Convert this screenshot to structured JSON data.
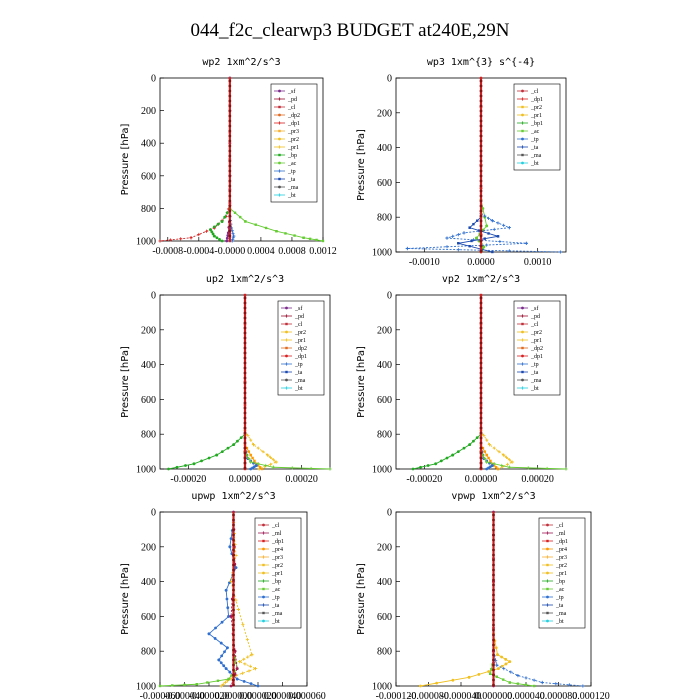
{
  "title": "044_f2c_clearwp3  BUDGET at240E,29N",
  "colors": {
    "sf": "#7a2a8a",
    "pd": "#9b1030",
    "cl": "#c0303a",
    "ml": "#a01d55",
    "dp1": "#d92020",
    "dp2": "#e06a20",
    "pr1": "#f0c020",
    "pr2": "#f0c020",
    "pr3": "#f7b030",
    "pr4": "#ff9900",
    "bp": "#22aa22",
    "bp1": "#22aa22",
    "ac": "#66cc33",
    "tp": "#2f6fd0",
    "ta": "#1a4ab0",
    "ma": "#555555",
    "bt": "#22d0e0"
  },
  "chart_data": [
    {
      "type": "line",
      "panel": "wp2",
      "title": "wp2   1xm^2/s^3",
      "ylabel": "Pressure [hPa]",
      "ylim": [
        0,
        1000
      ],
      "xlim": [
        -0.0009,
        0.0012
      ],
      "xticks": [
        -0.0008,
        -0.0004,
        0.0,
        0.0004,
        0.0008,
        0.0012
      ],
      "xtick_labels": [
        "-0.0008",
        "-0.0004",
        "-0.0000",
        "0.0004",
        "0.0008",
        "0.0012"
      ],
      "yticks": [
        0,
        200,
        400,
        600,
        800,
        1000
      ],
      "legend": [
        "_sf",
        "_pd",
        "_cl",
        "_dp2",
        "_dp1",
        "_pr3",
        "_pr2",
        "_pr1",
        "_bp",
        "_ac",
        "_tp",
        "_ta",
        "_ma",
        "_bt"
      ],
      "series": [
        {
          "name": "_sf",
          "color_key": "sf",
          "x": [
            0,
            0,
            0,
            -2e-05,
            -4e-05
          ],
          "y": [
            0,
            600,
            850,
            950,
            1000
          ]
        },
        {
          "name": "_dp1",
          "color_key": "dp1",
          "x": [
            0,
            -5e-05,
            -0.0002,
            -0.0005,
            -0.0009
          ],
          "y": [
            780,
            850,
            920,
            980,
            1000
          ]
        },
        {
          "name": "_ac",
          "color_key": "ac",
          "x": [
            0,
            0.0002,
            0.0006,
            0.00095,
            0.0012
          ],
          "y": [
            800,
            880,
            940,
            980,
            1000
          ]
        },
        {
          "name": "_bp",
          "color_key": "bp",
          "x": [
            0,
            -0.0001,
            -0.00025,
            -0.0002,
            -0.0001
          ],
          "y": [
            800,
            880,
            930,
            970,
            1000
          ]
        },
        {
          "name": "_tp",
          "color_key": "tp",
          "x": [
            0,
            2e-05,
            5e-05,
            3e-05
          ],
          "y": [
            850,
            920,
            970,
            1000
          ]
        },
        {
          "name": "_cl",
          "color_key": "cl",
          "x": [
            0,
            0,
            0,
            0
          ],
          "y": [
            0,
            500,
            900,
            1000
          ]
        }
      ]
    },
    {
      "type": "line",
      "panel": "wp3",
      "title": "wp3   1xm^{3} s^{-4}",
      "ylabel": "Pressure [hPa]",
      "ylim": [
        0,
        1000
      ],
      "xlim": [
        -0.0015,
        0.0015
      ],
      "xticks": [
        -0.001,
        0.0,
        0.001
      ],
      "xtick_labels": [
        "-0.0010",
        "0.0000",
        "0.0010"
      ],
      "yticks": [
        0,
        200,
        400,
        600,
        800,
        1000
      ],
      "legend": [
        "_cl",
        "_dp1",
        "_pr2",
        "_pr1",
        "_bp1",
        "_ac",
        "_tp",
        "_ta",
        "_ma",
        "_bt"
      ],
      "series": [
        {
          "name": "_ac",
          "color_key": "ac",
          "x": [
            0,
            0.0001,
            -8e-05,
            5e-05,
            0
          ],
          "y": [
            700,
            850,
            920,
            970,
            1000
          ]
        },
        {
          "name": "_tp",
          "color_key": "tp",
          "x": [
            0,
            0.0002,
            0.0005,
            -0.0003,
            -0.0006,
            0.0008,
            -0.0013,
            0.0014
          ],
          "y": [
            780,
            820,
            860,
            890,
            920,
            950,
            980,
            1000
          ]
        },
        {
          "name": "_ta",
          "color_key": "ta",
          "x": [
            0,
            -0.0002,
            0.0003,
            -0.0004,
            0.0002
          ],
          "y": [
            800,
            860,
            910,
            950,
            1000
          ]
        },
        {
          "name": "_dp1",
          "color_key": "dp1",
          "x": [
            0,
            0,
            0,
            0
          ],
          "y": [
            0,
            500,
            900,
            1000
          ]
        }
      ]
    },
    {
      "type": "line",
      "panel": "up2",
      "title": "up2   1xm^2/s^3",
      "ylabel": "Pressure [hPa]",
      "ylim": [
        0,
        1000
      ],
      "xlim": [
        -0.0003,
        0.0003
      ],
      "xticks": [
        -0.0002,
        0.0,
        0.0002
      ],
      "xtick_labels": [
        "-0.00020",
        "0.00000",
        "0.00020"
      ],
      "yticks": [
        0,
        200,
        400,
        600,
        800,
        1000
      ],
      "legend": [
        "_sf",
        "_pd",
        "_cl",
        "_pr2",
        "_pr1",
        "_dp2",
        "_dp1",
        "_tp",
        "_ta",
        "_ma",
        "_bt"
      ],
      "series": [
        {
          "name": "_dp2",
          "color_key": "bp",
          "x": [
            0,
            -4e-05,
            -0.0001,
            -0.00018,
            -0.00027
          ],
          "y": [
            800,
            860,
            920,
            970,
            1000
          ]
        },
        {
          "name": "_pr1",
          "color_key": "pr1",
          "x": [
            0,
            3e-05,
            8e-05,
            0.00011,
            5e-05
          ],
          "y": [
            780,
            860,
            920,
            960,
            1000
          ]
        },
        {
          "name": "_pr2",
          "color_key": "pr4",
          "x": [
            0,
            2e-05,
            4e-05,
            6e-05
          ],
          "y": [
            860,
            920,
            970,
            1000
          ]
        },
        {
          "name": "_tp",
          "color_key": "tp",
          "x": [
            0,
            1e-05,
            4e-05,
            2e-05
          ],
          "y": [
            880,
            940,
            980,
            1000
          ]
        },
        {
          "name": "_ac",
          "color_key": "ac",
          "x": [
            0,
            2e-05,
            0.0001,
            0.0003
          ],
          "y": [
            900,
            960,
            990,
            1000
          ]
        },
        {
          "name": "_sf",
          "color_key": "dp1",
          "x": [
            0,
            0,
            0,
            0
          ],
          "y": [
            0,
            500,
            900,
            1000
          ]
        }
      ]
    },
    {
      "type": "line",
      "panel": "vp2",
      "title": "vp2   1xm^2/s^3",
      "ylabel": "Pressure [hPa]",
      "ylim": [
        0,
        1000
      ],
      "xlim": [
        -0.0003,
        0.0003
      ],
      "xticks": [
        -0.0002,
        0.0,
        0.0002
      ],
      "xtick_labels": [
        "-0.00020",
        "0.00000",
        "0.00020"
      ],
      "yticks": [
        0,
        200,
        400,
        600,
        800,
        1000
      ],
      "legend": [
        "_sf",
        "_pd",
        "_cl",
        "_pr2",
        "_pr1",
        "_dp2",
        "_dp1",
        "_tp",
        "_ta",
        "_ma",
        "_bt"
      ],
      "series": [
        {
          "name": "_dp2",
          "color_key": "bp",
          "x": [
            0,
            -4e-05,
            -0.0001,
            -0.00016,
            -0.00024
          ],
          "y": [
            800,
            860,
            920,
            970,
            1000
          ]
        },
        {
          "name": "_pr1",
          "color_key": "pr1",
          "x": [
            0,
            3e-05,
            8e-05,
            0.00011,
            6e-05
          ],
          "y": [
            780,
            860,
            920,
            960,
            1000
          ]
        },
        {
          "name": "_pr2",
          "color_key": "pr4",
          "x": [
            0,
            2e-05,
            4e-05,
            6e-05
          ],
          "y": [
            860,
            920,
            970,
            1000
          ]
        },
        {
          "name": "_tp",
          "color_key": "tp",
          "x": [
            0,
            1e-05,
            4e-05,
            2e-05
          ],
          "y": [
            880,
            940,
            980,
            1000
          ]
        },
        {
          "name": "_ac",
          "color_key": "ac",
          "x": [
            0,
            2e-05,
            0.0001,
            0.0003
          ],
          "y": [
            900,
            960,
            990,
            1000
          ]
        },
        {
          "name": "_sf",
          "color_key": "dp1",
          "x": [
            0,
            0,
            0,
            0
          ],
          "y": [
            0,
            500,
            900,
            1000
          ]
        }
      ]
    },
    {
      "type": "line",
      "panel": "upwp",
      "title": "upwp   1xm^2/s^3",
      "ylabel": "Pressure [hPa]",
      "ylim": [
        0,
        1000
      ],
      "xlim": [
        -6e-05,
        6e-05
      ],
      "xticks": [
        -6e-05,
        -4e-05,
        -2e-05,
        0.0,
        2e-05,
        4e-05,
        6e-05
      ],
      "xtick_labels": [
        "-0.000060",
        "-0.000040",
        "-0.000020",
        "0.000000",
        "0.000020",
        "0.000040",
        "0.000060"
      ],
      "yticks": [
        0,
        200,
        400,
        600,
        800,
        1000
      ],
      "legend": [
        "_cl",
        "_ml",
        "_dp1",
        "_pr4",
        "_pr3",
        "_pr2",
        "_pr1",
        "_bp",
        "_ac",
        "_tp",
        "_ta",
        "_ma",
        "_bt"
      ],
      "series": [
        {
          "name": "_tp",
          "color_key": "tp",
          "x": [
            0,
            -3e-06,
            2e-06,
            -6e-06,
            -4e-06,
            -2e-05,
            -5e-06,
            -1.2e-05,
            -6e-06,
            3e-06,
            2e-05
          ],
          "y": [
            60,
            200,
            320,
            450,
            600,
            700,
            780,
            850,
            900,
            960,
            1000
          ]
        },
        {
          "name": "_pr1",
          "color_key": "pr1",
          "x": [
            0,
            2e-06,
            -2e-06,
            4e-06,
            1.5e-05,
            5e-06,
            1.8e-05,
            2e-06,
            -5e-06,
            -1e-05
          ],
          "y": [
            60,
            250,
            400,
            560,
            820,
            860,
            900,
            940,
            970,
            1000
          ]
        },
        {
          "name": "_ac",
          "color_key": "ac",
          "x": [
            0,
            3e-06,
            -4e-06,
            -3e-05,
            -6e-05
          ],
          "y": [
            800,
            900,
            960,
            990,
            1000
          ]
        },
        {
          "name": "_ml",
          "color_key": "ml",
          "x": [
            0,
            1e-06,
            -2e-06,
            3e-06,
            -2e-06
          ],
          "y": [
            0,
            300,
            600,
            900,
            1000
          ]
        }
      ]
    },
    {
      "type": "line",
      "panel": "vpwp",
      "title": "vpwp   1xm^2/s^3",
      "ylabel": "Pressure [hPa]",
      "ylim": [
        0,
        1000
      ],
      "xlim": [
        -0.00012,
        0.00012
      ],
      "xticks": [
        -0.00012,
        -8e-05,
        -4e-05,
        0.0,
        4e-05,
        8e-05,
        0.00012
      ],
      "xtick_labels": [
        "-0.000120",
        "-0.000080",
        "-0.000040",
        "0.000000",
        "0.000040",
        "0.000080",
        "0.000120"
      ],
      "yticks": [
        0,
        200,
        400,
        600,
        800,
        1000
      ],
      "legend": [
        "_cl",
        "_ml",
        "_dp1",
        "_pr4",
        "_pr3",
        "_pr2",
        "_pr1",
        "_bp",
        "_ac",
        "_tp",
        "_ta",
        "_ma",
        "_bt"
      ],
      "series": [
        {
          "name": "_pr1",
          "color_key": "pr1",
          "x": [
            0,
            5e-06,
            2e-05,
            6e-06,
            -3e-05,
            -9e-05
          ],
          "y": [
            700,
            820,
            860,
            900,
            950,
            1000
          ]
        },
        {
          "name": "_tp",
          "color_key": "tp",
          "x": [
            0,
            4e-06,
            3e-05,
            6e-05,
            0.00011
          ],
          "y": [
            800,
            880,
            940,
            980,
            1000
          ]
        },
        {
          "name": "_ac",
          "color_key": "ac",
          "x": [
            0,
            -4e-06,
            2e-05,
            5e-05
          ],
          "y": [
            850,
            930,
            980,
            1000
          ]
        },
        {
          "name": "_ml",
          "color_key": "ml",
          "x": [
            0,
            0,
            0,
            0
          ],
          "y": [
            0,
            400,
            800,
            1000
          ]
        }
      ]
    }
  ]
}
